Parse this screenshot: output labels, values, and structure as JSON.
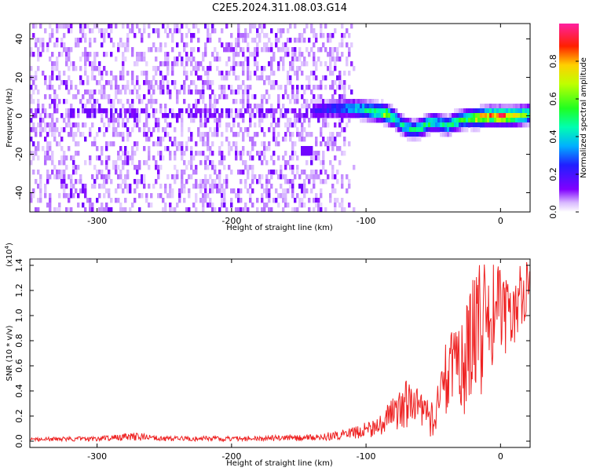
{
  "title": "C2E5.2024.311.08.03.G14",
  "chart_data": [
    {
      "type": "heatmap",
      "xlabel": "Height of straight line (km)",
      "ylabel": "Frequency (Hz)",
      "xlim": [
        -350,
        22
      ],
      "ylim": [
        -50,
        48
      ],
      "xticks": [
        -300,
        -200,
        -100,
        0
      ],
      "yticks": [
        -40,
        -20,
        0,
        20,
        40
      ],
      "colorbar": {
        "label": "Normalized spectral amplitude",
        "range": [
          0.0,
          1.0
        ],
        "ticks": [
          "0.0",
          "0.2",
          "0.4",
          "0.6",
          "0.8"
        ],
        "colormap": "rainbow (white to purple, blue, cyan, green, yellow, red, magenta)",
        "position": "right"
      },
      "features": {
        "noise_region_x": [
          -350,
          -120
        ],
        "noise_amplitude": 0.1,
        "signal_trace": {
          "x": [
            -140,
            -120,
            -110,
            -100,
            -90,
            -85,
            -80,
            -75,
            -70,
            -65,
            -60,
            -55,
            -50,
            -45,
            -40,
            -35,
            -30,
            -25,
            -20,
            -10,
            0,
            10,
            20
          ],
          "freq_hz": [
            4,
            5,
            5,
            4,
            3,
            2,
            0,
            -3,
            -5,
            -6,
            -5,
            -3,
            -2,
            -3,
            -4,
            -2,
            -1,
            0,
            0,
            1,
            1,
            1,
            2
          ],
          "peak_amplitude": [
            0.2,
            0.3,
            0.4,
            0.5,
            0.6,
            0.75,
            0.5,
            0.45,
            0.5,
            0.45,
            0.5,
            0.55,
            0.5,
            0.45,
            0.5,
            0.5,
            0.55,
            0.6,
            0.8,
            0.85,
            0.9,
            0.85,
            0.6
          ]
        },
        "spot_at": {
          "x": -145,
          "freq_hz": -17
        }
      }
    },
    {
      "type": "line",
      "xlabel": "Height of straight line (km)",
      "ylabel": "SNR (10 * v/v)",
      "y_multiplier": "(x10",
      "y_multiplier_exp": "4",
      "xlim": [
        -350,
        22
      ],
      "ylim": [
        -0.05,
        1.45
      ],
      "xticks": [
        -300,
        -200,
        -100,
        0
      ],
      "yticks": [
        "0.0",
        "0.2",
        "0.4",
        "0.6",
        "0.8",
        "1.0",
        "1.2",
        "1.4"
      ],
      "color": "#ee2222",
      "series": [
        {
          "envelope_x": [
            -350,
            -300,
            -270,
            -250,
            -200,
            -150,
            -120,
            -100,
            -90,
            -80,
            -70,
            -60,
            -50,
            -40,
            -30,
            -20,
            -10,
            0,
            10,
            20
          ],
          "envelope_low": [
            0.0,
            0.0,
            0.0,
            0.0,
            0.0,
            0.0,
            0.01,
            0.02,
            0.04,
            0.08,
            0.1,
            0.05,
            0.0,
            0.08,
            0.15,
            0.25,
            0.45,
            0.6,
            0.7,
            1.0
          ],
          "envelope_high": [
            0.03,
            0.04,
            0.07,
            0.04,
            0.04,
            0.05,
            0.08,
            0.15,
            0.2,
            0.35,
            0.5,
            0.4,
            0.3,
            0.85,
            0.9,
            1.45,
            1.4,
            1.45,
            1.35,
            1.45
          ]
        }
      ]
    }
  ]
}
